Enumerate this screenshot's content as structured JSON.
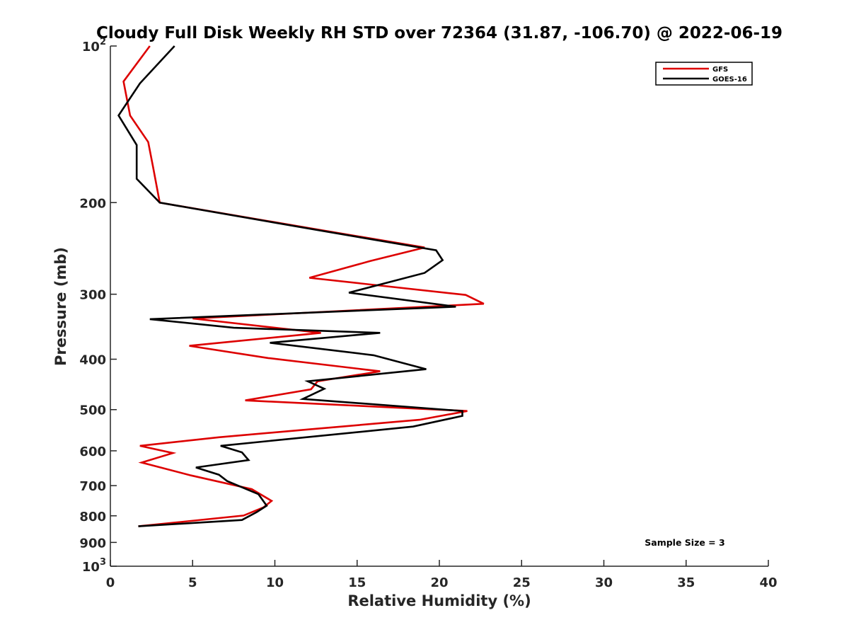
{
  "chart_data": {
    "type": "line",
    "title": "Cloudy Full Disk Weekly RH STD over 72364 (31.87, -106.70) @ 2022-06-19",
    "xlabel": "Relative Humidity (%)",
    "ylabel": "Pressure (mb)",
    "xlim": [
      0,
      40
    ],
    "ylim": [
      100,
      1000
    ],
    "y_scale": "log",
    "y_reversed": true,
    "grid": false,
    "legend_position": "top-right",
    "x_ticks": [
      "0",
      "5",
      "10",
      "15",
      "20",
      "25",
      "30",
      "35",
      "40"
    ],
    "y_ticks": [
      {
        "value": 100,
        "label": "10",
        "sup": "2"
      },
      {
        "value": 200,
        "label": "200",
        "sup": ""
      },
      {
        "value": 300,
        "label": "300",
        "sup": ""
      },
      {
        "value": 400,
        "label": "400",
        "sup": ""
      },
      {
        "value": 500,
        "label": "500",
        "sup": ""
      },
      {
        "value": 600,
        "label": "600",
        "sup": ""
      },
      {
        "value": 700,
        "label": "700",
        "sup": ""
      },
      {
        "value": 800,
        "label": "800",
        "sup": ""
      },
      {
        "value": 900,
        "label": "900",
        "sup": ""
      },
      {
        "value": 1000,
        "label": "10",
        "sup": "3"
      }
    ],
    "annotation": "Sample Size = 3",
    "series": [
      {
        "name": "GFS",
        "color": "#dd0000",
        "points": [
          [
            2.4,
            100
          ],
          [
            0.8,
            117
          ],
          [
            1.2,
            136
          ],
          [
            2.3,
            153
          ],
          [
            2.6,
            171
          ],
          [
            3.0,
            200
          ],
          [
            12.5,
            225
          ],
          [
            19.1,
            244
          ],
          [
            15.8,
            259
          ],
          [
            12.1,
            279
          ],
          [
            21.6,
            301
          ],
          [
            22.7,
            313
          ],
          [
            5.0,
            334
          ],
          [
            12.8,
            356
          ],
          [
            4.8,
            377
          ],
          [
            9.6,
            398
          ],
          [
            16.4,
            422
          ],
          [
            12.6,
            441
          ],
          [
            12.2,
            457
          ],
          [
            8.2,
            480
          ],
          [
            21.7,
            503
          ],
          [
            18.8,
            523
          ],
          [
            12.0,
            546
          ],
          [
            6.6,
            565
          ],
          [
            1.8,
            587
          ],
          [
            3.8,
            606
          ],
          [
            1.9,
            632
          ],
          [
            4.9,
            669
          ],
          [
            8.6,
            711
          ],
          [
            9.8,
            749
          ],
          [
            9.3,
            771
          ],
          [
            8.1,
            799
          ],
          [
            1.7,
            838
          ]
        ]
      },
      {
        "name": "GOES-16",
        "color": "#000000",
        "points": [
          [
            3.9,
            100
          ],
          [
            1.8,
            118
          ],
          [
            0.5,
            136
          ],
          [
            1.6,
            155
          ],
          [
            1.6,
            180
          ],
          [
            3.0,
            200
          ],
          [
            12.3,
            225
          ],
          [
            19.8,
            247
          ],
          [
            20.2,
            258
          ],
          [
            19.1,
            273
          ],
          [
            14.5,
            298
          ],
          [
            21.0,
            317
          ],
          [
            2.4,
            335
          ],
          [
            7.5,
            348
          ],
          [
            16.4,
            356
          ],
          [
            9.7,
            372
          ],
          [
            16.0,
            393
          ],
          [
            19.2,
            418
          ],
          [
            12.0,
            441
          ],
          [
            13.0,
            456
          ],
          [
            11.7,
            477
          ],
          [
            21.4,
            503
          ],
          [
            21.4,
            514
          ],
          [
            18.4,
            539
          ],
          [
            6.7,
            587
          ],
          [
            8.0,
            604
          ],
          [
            8.4,
            625
          ],
          [
            5.2,
            646
          ],
          [
            6.6,
            667
          ],
          [
            7.1,
            686
          ],
          [
            9.0,
            727
          ],
          [
            9.5,
            765
          ],
          [
            8.9,
            787
          ],
          [
            8.0,
            815
          ],
          [
            1.7,
            838
          ]
        ]
      }
    ]
  }
}
